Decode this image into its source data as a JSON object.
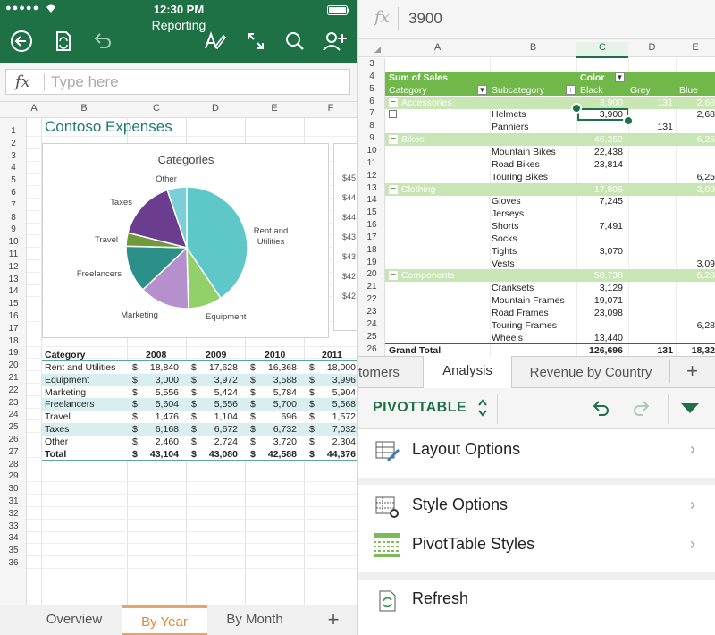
{
  "left": {
    "status": {
      "carrier": "●●●●● ",
      "time": "12:30 PM"
    },
    "title": "Reporting",
    "formula_placeholder": "Type here",
    "fx_label": "fx",
    "columns": [
      "A",
      "B",
      "C",
      "D",
      "E",
      "F"
    ],
    "rows": [
      "1",
      "2",
      "3",
      "4",
      "5",
      "6",
      "7",
      "8",
      "9",
      "10",
      "11",
      "12",
      "13",
      "14",
      "15",
      "16",
      "17",
      "18",
      "19",
      "20",
      "21",
      "22",
      "23",
      "24",
      "25",
      "26",
      "27",
      "28",
      "29",
      "30",
      "31",
      "32",
      "33",
      "34",
      "35",
      "36"
    ],
    "sheet_title": "Contoso Expenses",
    "side_values": [
      "$45",
      "$44",
      "$44",
      "$43",
      "$43",
      "$42",
      "$42"
    ],
    "table": {
      "headers": [
        "Category",
        "2008",
        "2009",
        "2010",
        "2011"
      ],
      "rows": [
        [
          "Rent and Utilities",
          "$",
          "18,840",
          "$",
          "17,628",
          "$",
          "16,368",
          "$",
          "18,000"
        ],
        [
          "Equipment",
          "$",
          "3,000",
          "$",
          "3,972",
          "$",
          "3,588",
          "$",
          "3,996"
        ],
        [
          "Marketing",
          "$",
          "5,556",
          "$",
          "5,424",
          "$",
          "5,784",
          "$",
          "5,904"
        ],
        [
          "Freelancers",
          "$",
          "5,604",
          "$",
          "5,556",
          "$",
          "5,700",
          "$",
          "5,568"
        ],
        [
          "Travel",
          "$",
          "1,476",
          "$",
          "1,104",
          "$",
          "696",
          "$",
          "1,572"
        ],
        [
          "Taxes",
          "$",
          "6,168",
          "$",
          "6,672",
          "$",
          "6,732",
          "$",
          "7,032"
        ],
        [
          "Other",
          "$",
          "2,460",
          "$",
          "2,724",
          "$",
          "3,720",
          "$",
          "2,304"
        ],
        [
          "Total",
          "$",
          "43,104",
          "$",
          "43,080",
          "$",
          "42,588",
          "$",
          "44,376"
        ]
      ]
    },
    "sheet_tabs": [
      "Overview",
      "By Year",
      "By Month"
    ],
    "add_tab": "+"
  },
  "chart_data": {
    "type": "pie",
    "title": "Categories",
    "categories": [
      "Rent and Utilities",
      "Equipment",
      "Marketing",
      "Freelancers",
      "Travel",
      "Taxes",
      "Other"
    ],
    "values": [
      18000,
      3996,
      5904,
      5568,
      1572,
      7032,
      2304
    ],
    "colors": [
      "#5ec8c8",
      "#92d16a",
      "#b590cc",
      "#2b8f8a",
      "#6f9a3b",
      "#6a3d8f",
      "#7ccfd6"
    ]
  },
  "right": {
    "fx_label": "fx",
    "formula_value": "3900",
    "columns": [
      "A",
      "B",
      "C",
      "D",
      "E"
    ],
    "pivot_rows": [
      {
        "n": "3",
        "a": "",
        "b": "",
        "c": "",
        "d": "",
        "e": "",
        "style": "plain"
      },
      {
        "n": "4",
        "a": "Sum of Sales",
        "b": "",
        "c": "Color",
        "d": "",
        "e": "",
        "style": "header"
      },
      {
        "n": "5",
        "a": "Category",
        "b": "Subcategory",
        "c": "Black",
        "d": "Grey",
        "e": "Blue",
        "style": "header"
      },
      {
        "n": "6",
        "a": "Accessories",
        "b": "",
        "c": "3,900",
        "d": "131",
        "e": "2,68",
        "style": "group"
      },
      {
        "n": "7",
        "a": "",
        "b": "Helmets",
        "c": "3,900",
        "d": "",
        "e": "2,68",
        "style": "plain"
      },
      {
        "n": "8",
        "a": "",
        "b": "Panniers",
        "c": "",
        "d": "131",
        "e": "",
        "style": "plain"
      },
      {
        "n": "9",
        "a": "Bikes",
        "b": "",
        "c": "46,252",
        "d": "",
        "e": "6,25",
        "style": "group"
      },
      {
        "n": "10",
        "a": "",
        "b": "Mountain Bikes",
        "c": "22,438",
        "d": "",
        "e": "",
        "style": "plain"
      },
      {
        "n": "11",
        "a": "",
        "b": "Road Bikes",
        "c": "23,814",
        "d": "",
        "e": "",
        "style": "plain"
      },
      {
        "n": "12",
        "a": "",
        "b": "Touring Bikes",
        "c": "",
        "d": "",
        "e": "6,25",
        "style": "plain"
      },
      {
        "n": "13",
        "a": "Clothing",
        "b": "",
        "c": "17,806",
        "d": "",
        "e": "3,09",
        "style": "group"
      },
      {
        "n": "14",
        "a": "",
        "b": "Gloves",
        "c": "7,245",
        "d": "",
        "e": "",
        "style": "plain"
      },
      {
        "n": "15",
        "a": "",
        "b": "Jerseys",
        "c": "",
        "d": "",
        "e": "",
        "style": "plain"
      },
      {
        "n": "16",
        "a": "",
        "b": "Shorts",
        "c": "7,491",
        "d": "",
        "e": "",
        "style": "plain"
      },
      {
        "n": "17",
        "a": "",
        "b": "Socks",
        "c": "",
        "d": "",
        "e": "",
        "style": "plain"
      },
      {
        "n": "18",
        "a": "",
        "b": "Tights",
        "c": "3,070",
        "d": "",
        "e": "",
        "style": "plain"
      },
      {
        "n": "19",
        "a": "",
        "b": "Vests",
        "c": "",
        "d": "",
        "e": "3,09",
        "style": "plain"
      },
      {
        "n": "20",
        "a": "Components",
        "b": "",
        "c": "58,738",
        "d": "",
        "e": "6,28",
        "style": "group"
      },
      {
        "n": "21",
        "a": "",
        "b": "Cranksets",
        "c": "3,129",
        "d": "",
        "e": "",
        "style": "plain"
      },
      {
        "n": "22",
        "a": "",
        "b": "Mountain Frames",
        "c": "19,071",
        "d": "",
        "e": "",
        "style": "plain"
      },
      {
        "n": "23",
        "a": "",
        "b": "Road Frames",
        "c": "23,098",
        "d": "",
        "e": "",
        "style": "plain"
      },
      {
        "n": "24",
        "a": "",
        "b": "Touring Frames",
        "c": "",
        "d": "",
        "e": "6,28",
        "style": "plain"
      },
      {
        "n": "25",
        "a": "",
        "b": "Wheels",
        "c": "13,440",
        "d": "",
        "e": "",
        "style": "plain"
      },
      {
        "n": "26",
        "a": "Grand Total",
        "b": "",
        "c": "126,696",
        "d": "131",
        "e": "18,32",
        "style": "total"
      }
    ],
    "sheet_tabs": [
      "tomers",
      "Analysis",
      "Revenue by Country"
    ],
    "add_tab": "+",
    "ribbon_label": "PIVOTTABLE",
    "menu": [
      "Layout Options",
      "Style Options",
      "PivotTable Styles",
      "Refresh"
    ],
    "accent": "#1e7145"
  }
}
